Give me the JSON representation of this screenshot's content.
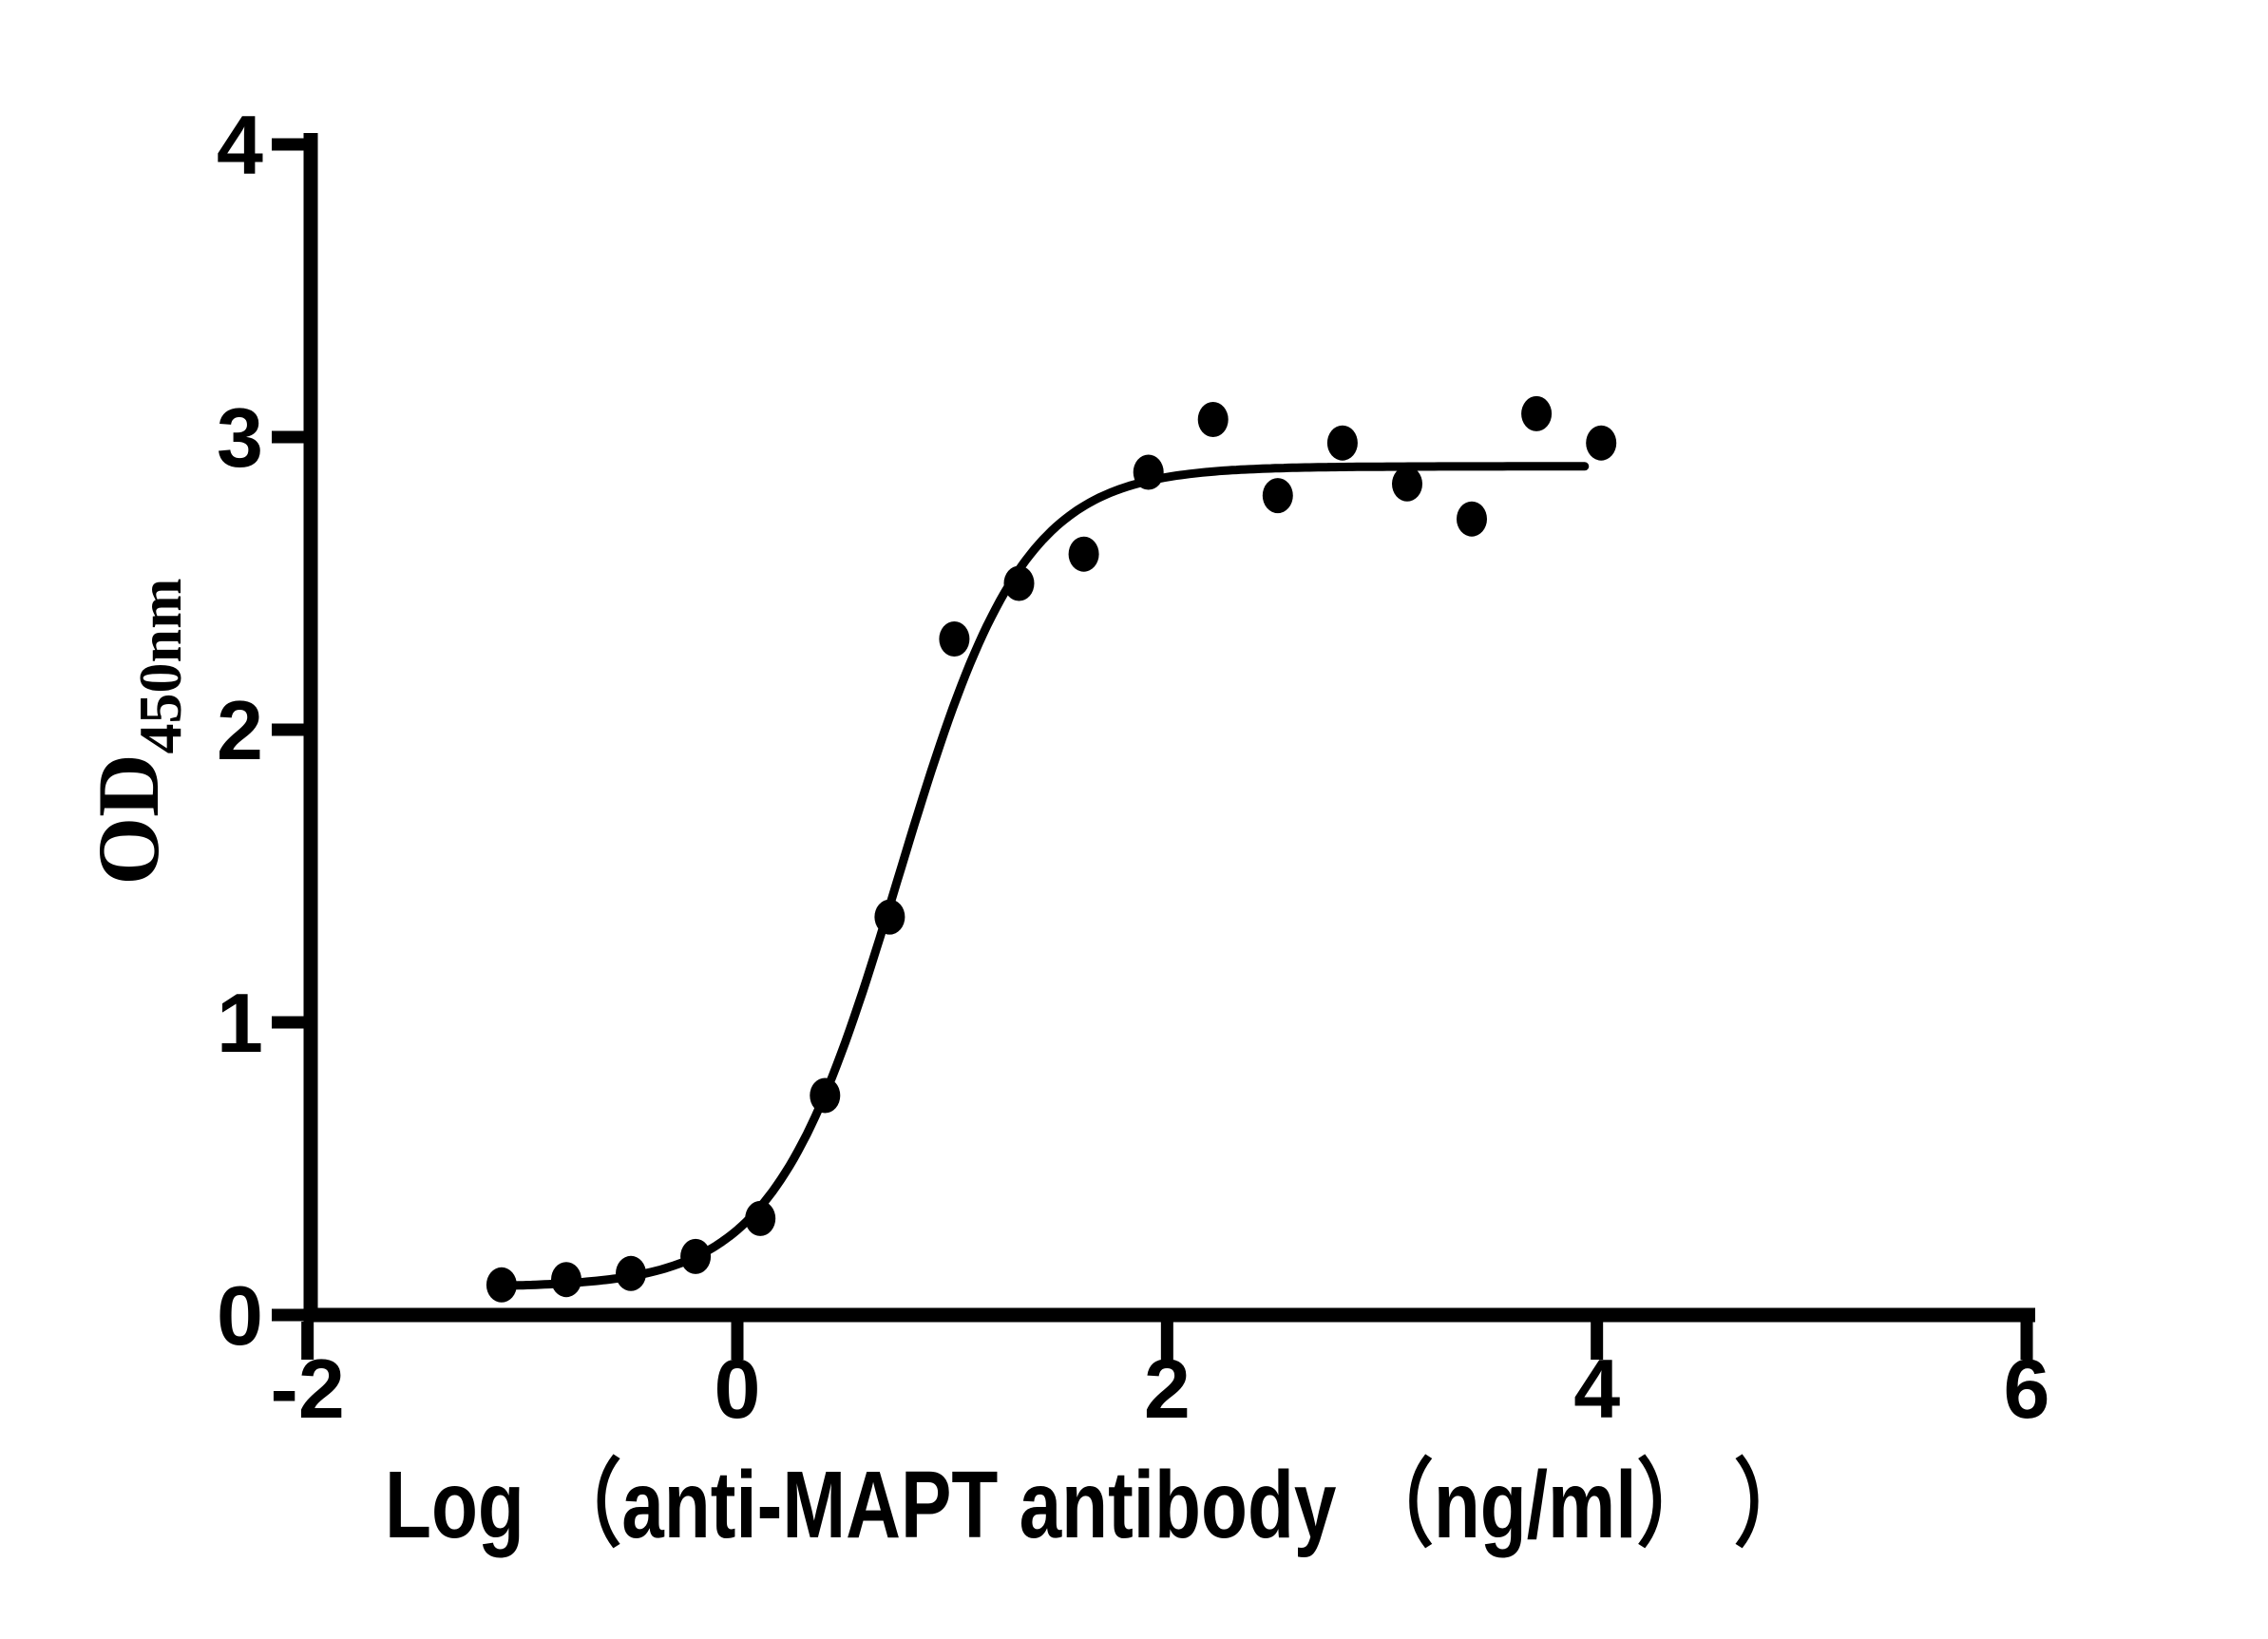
{
  "figure": {
    "background_color": "#ffffff",
    "ink_color": "#000000"
  },
  "chart_data": {
    "type": "scatter",
    "title": "",
    "xlabel": "Log （anti-MAPT antibody （ng/ml） ）",
    "ylabel": {
      "main": "OD",
      "subscript": "450nm"
    },
    "x_ticks": [
      -2,
      0,
      2,
      4,
      6
    ],
    "y_ticks": [
      0,
      1,
      2,
      3,
      4
    ],
    "xlim": [
      -2,
      6
    ],
    "ylim": [
      0,
      4
    ],
    "grid": false,
    "legend": null,
    "marker": "filled-circle",
    "points": [
      {
        "x": -1.097,
        "y": 0.103
      },
      {
        "x": -0.796,
        "y": 0.121
      },
      {
        "x": -0.495,
        "y": 0.142
      },
      {
        "x": -0.194,
        "y": 0.2
      },
      {
        "x": 0.107,
        "y": 0.33
      },
      {
        "x": 0.408,
        "y": 0.75
      },
      {
        "x": 0.709,
        "y": 1.36
      },
      {
        "x": 1.01,
        "y": 2.31
      },
      {
        "x": 1.311,
        "y": 2.5
      },
      {
        "x": 1.612,
        "y": 2.6
      },
      {
        "x": 1.913,
        "y": 2.88
      },
      {
        "x": 2.214,
        "y": 3.06
      },
      {
        "x": 2.515,
        "y": 2.8
      },
      {
        "x": 2.816,
        "y": 2.98
      },
      {
        "x": 3.117,
        "y": 2.84
      },
      {
        "x": 3.418,
        "y": 2.72
      },
      {
        "x": 3.719,
        "y": 3.08
      },
      {
        "x": 4.02,
        "y": 2.98
      }
    ],
    "curve_fit": {
      "model": "4PL sigmoid",
      "bottom": 0.095,
      "top": 2.9,
      "logEC50": 0.75,
      "hill_slope": 1.5,
      "x_start": -1.097,
      "x_end": 3.96
    }
  }
}
